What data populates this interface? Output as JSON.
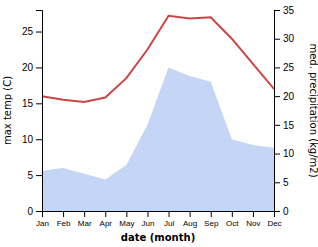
{
  "chart_data": {
    "type": "line",
    "xlabel": "date (month)",
    "ylabel": "max temp (C)",
    "y2label": "med. precipitation (kg/m2)",
    "categories": [
      "Jan",
      "Feb",
      "Mar",
      "Apr",
      "May",
      "Jun",
      "Jul",
      "Aug",
      "Sep",
      "Oct",
      "Nov",
      "Dec"
    ],
    "series": [
      {
        "type": "area",
        "axis": "y2",
        "color": "#c5d5f5",
        "values": [
          7.0,
          7.5,
          6.5,
          5.5,
          8.0,
          15.0,
          25.0,
          23.5,
          22.5,
          12.5,
          11.5,
          11.0
        ]
      },
      {
        "type": "line",
        "color": "#cc4444",
        "values": [
          16.0,
          15.5,
          15.2,
          15.8,
          18.5,
          22.5,
          27.2,
          26.8,
          27.0,
          24.0,
          20.5,
          17.0
        ]
      }
    ],
    "ylim": [
      0,
      28
    ],
    "yticks": [
      0,
      5,
      10,
      15,
      20,
      25
    ],
    "y2lim": [
      0,
      35
    ],
    "y2ticks": [
      0,
      5,
      10,
      15,
      20,
      25,
      30,
      35
    ],
    "grid": false
  }
}
